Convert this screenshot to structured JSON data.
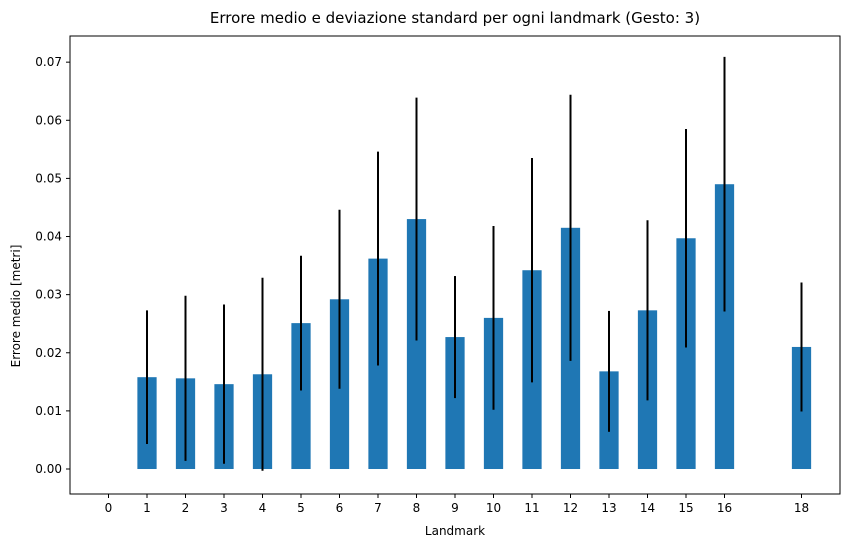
{
  "chart_data": {
    "type": "bar",
    "title": "Errore medio e deviazione standard per ogni landmark (Gesto: 3)",
    "xlabel": "Landmark",
    "ylabel": "Errore medio [metri]",
    "x_ticks": [
      "0",
      "1",
      "2",
      "3",
      "4",
      "5",
      "6",
      "7",
      "8",
      "9",
      "10",
      "11",
      "12",
      "13",
      "14",
      "15",
      "16",
      "18"
    ],
    "y_ticks": [
      "0.00",
      "0.01",
      "0.02",
      "0.03",
      "0.04",
      "0.05",
      "0.06",
      "0.07"
    ],
    "xlim": [
      -1.0,
      19.0
    ],
    "ylim": [
      -0.0043,
      0.0745
    ],
    "bar_color": "#1f77b4",
    "error_color": "#000000",
    "grid": false,
    "legend": "none",
    "bars": [
      {
        "x": 1,
        "value": 0.0158,
        "std": 0.0115
      },
      {
        "x": 2,
        "value": 0.0156,
        "std": 0.0142
      },
      {
        "x": 3,
        "value": 0.0146,
        "std": 0.0137
      },
      {
        "x": 4,
        "value": 0.0163,
        "std": 0.0166
      },
      {
        "x": 5,
        "value": 0.0251,
        "std": 0.0116
      },
      {
        "x": 6,
        "value": 0.0292,
        "std": 0.0154
      },
      {
        "x": 7,
        "value": 0.0362,
        "std": 0.0184
      },
      {
        "x": 8,
        "value": 0.043,
        "std": 0.0209
      },
      {
        "x": 9,
        "value": 0.0227,
        "std": 0.0105
      },
      {
        "x": 10,
        "value": 0.026,
        "std": 0.0158
      },
      {
        "x": 11,
        "value": 0.0342,
        "std": 0.0193
      },
      {
        "x": 12,
        "value": 0.0415,
        "std": 0.0229
      },
      {
        "x": 13,
        "value": 0.0168,
        "std": 0.0104
      },
      {
        "x": 14,
        "value": 0.0273,
        "std": 0.0155
      },
      {
        "x": 15,
        "value": 0.0397,
        "std": 0.0188
      },
      {
        "x": 16,
        "value": 0.049,
        "std": 0.0219
      },
      {
        "x": 18,
        "value": 0.021,
        "std": 0.0111
      }
    ]
  }
}
